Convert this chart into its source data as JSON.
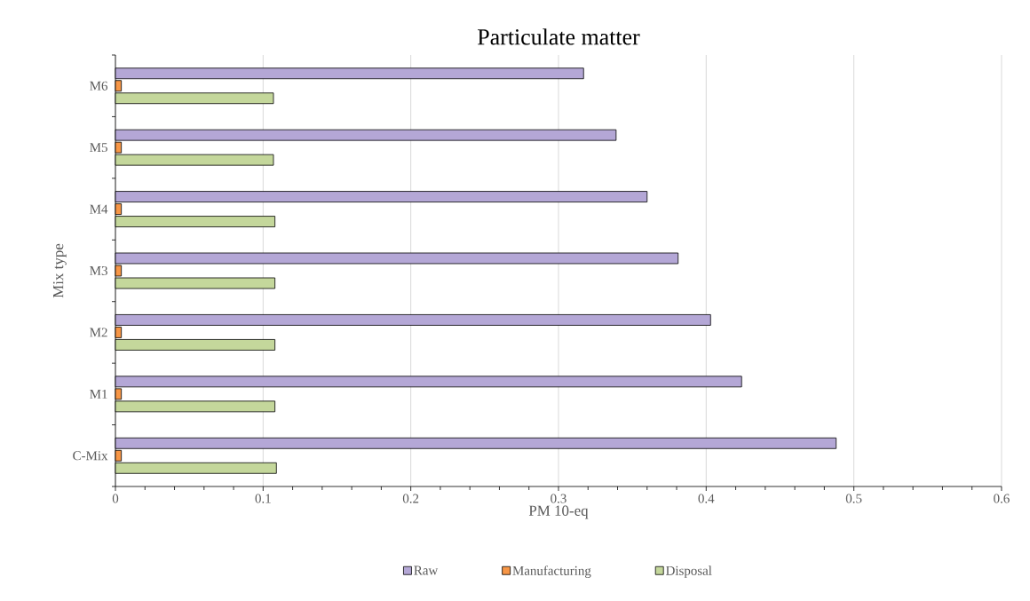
{
  "chart_data": {
    "type": "bar",
    "orientation": "horizontal",
    "title": "Particulate matter",
    "xlabel": "PM 10-eq",
    "ylabel": "Mix type",
    "categories": [
      "M6",
      "M5",
      "M4",
      "M3",
      "M2",
      "M1",
      "C-Mix"
    ],
    "series": [
      {
        "name": "Raw",
        "color": "#b4a7d6",
        "values": [
          0.317,
          0.339,
          0.36,
          0.381,
          0.403,
          0.424,
          0.488
        ]
      },
      {
        "name": "Manufacturing",
        "color": "#f79646",
        "values": [
          0.004,
          0.004,
          0.004,
          0.004,
          0.004,
          0.004,
          0.004
        ]
      },
      {
        "name": "Disposal",
        "color": "#c4d79b",
        "values": [
          0.107,
          0.107,
          0.108,
          0.108,
          0.108,
          0.108,
          0.109
        ]
      }
    ],
    "xlim": [
      0,
      0.6
    ],
    "xticks": [
      0,
      0.1,
      0.2,
      0.3,
      0.4,
      0.5,
      0.6
    ],
    "grid": "x",
    "legend": "bottom"
  }
}
